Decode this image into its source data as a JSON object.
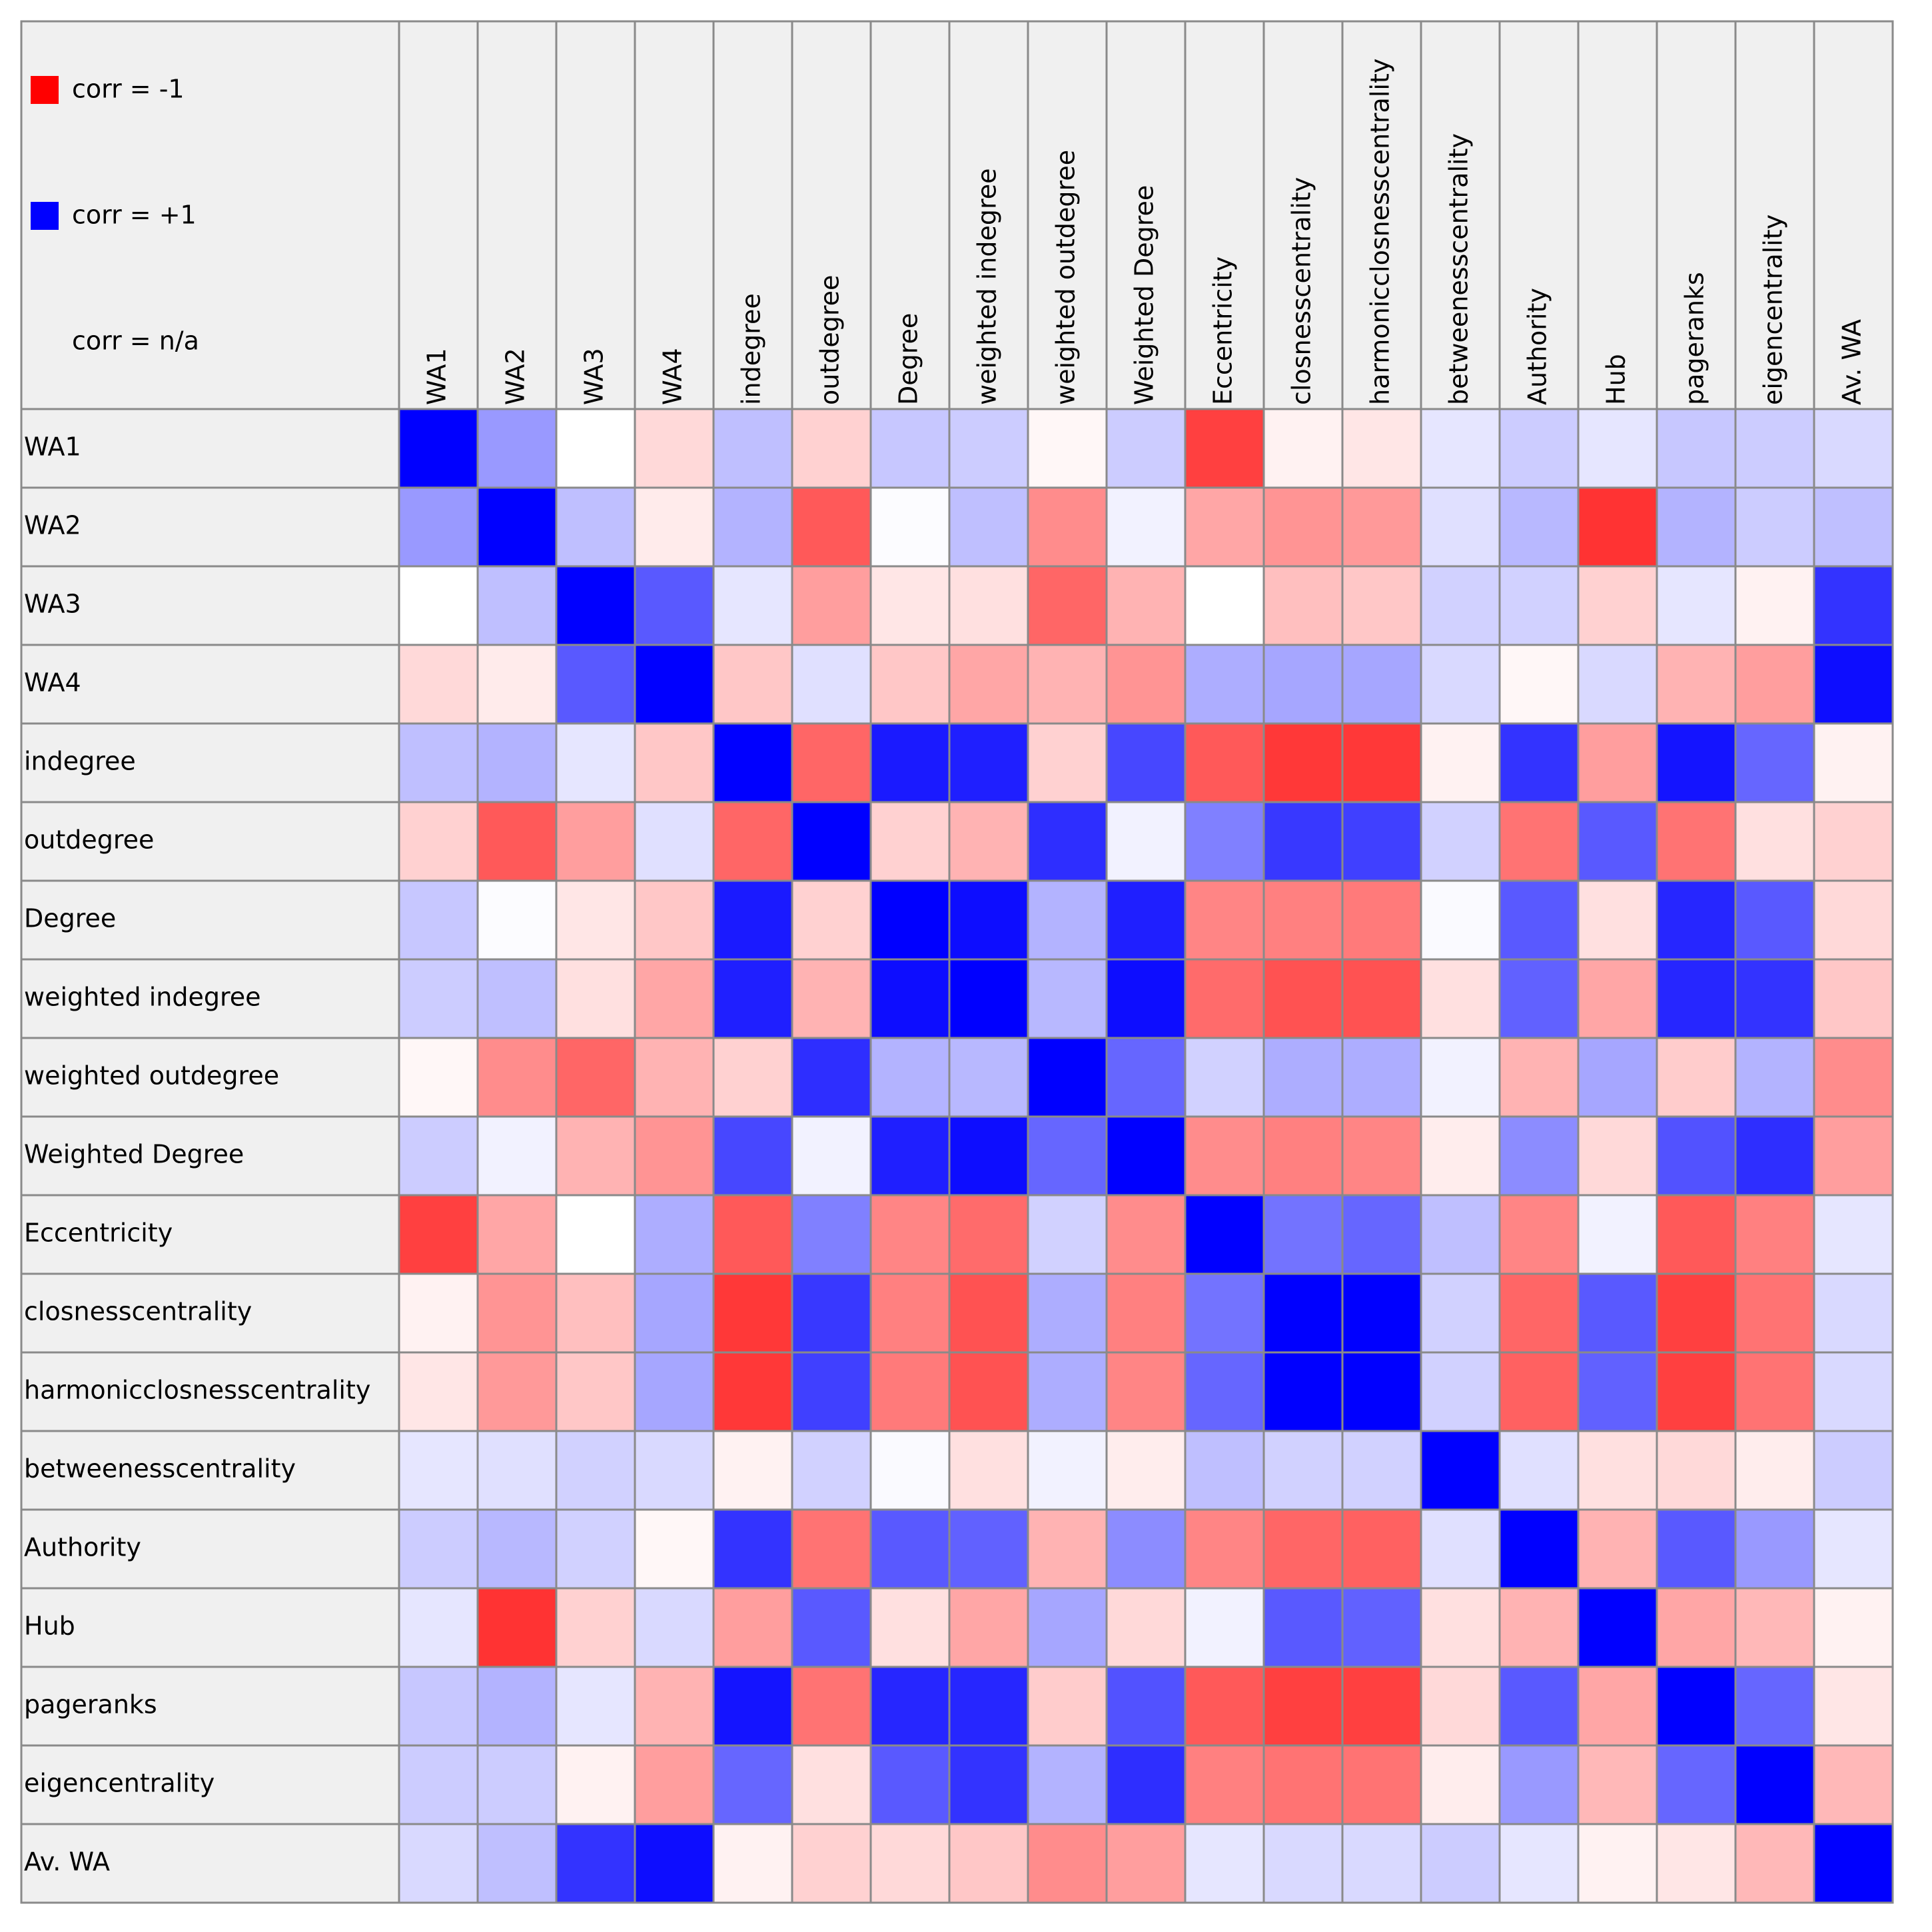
{
  "chart_data": {
    "type": "heatmap",
    "categories": [
      "WA1",
      "WA2",
      "WA3",
      "WA4",
      "indegree",
      "outdegree",
      "Degree",
      "weighted indegree",
      "weighted outdegree",
      "Weighted Degree",
      "Eccentricity",
      "closnesscentrality",
      "harmonicclosnesscentrality",
      "betweenesscentrality",
      "Authority",
      "Hub",
      "pageranks",
      "eigencentrality",
      "Av. WA"
    ],
    "values": [
      [
        1,
        0.4,
        0.0,
        -0.15,
        0.25,
        -0.18,
        0.22,
        0.2,
        -0.03,
        0.2,
        -0.75,
        -0.05,
        -0.1,
        0.1,
        0.2,
        0.1,
        0.22,
        0.2,
        0.15
      ],
      [
        0.4,
        1,
        0.25,
        -0.08,
        0.3,
        -0.65,
        0.01,
        0.25,
        -0.45,
        0.05,
        -0.35,
        -0.42,
        -0.4,
        0.12,
        0.28,
        -0.8,
        0.3,
        0.2,
        0.25
      ],
      [
        0.0,
        0.25,
        1,
        0.65,
        0.1,
        -0.38,
        -0.1,
        -0.12,
        -0.6,
        -0.3,
        0.0,
        -0.25,
        -0.22,
        0.18,
        0.18,
        -0.18,
        0.1,
        -0.05,
        0.8
      ],
      [
        -0.15,
        -0.08,
        0.65,
        1,
        -0.22,
        0.12,
        -0.22,
        -0.35,
        -0.3,
        -0.42,
        0.32,
        0.35,
        0.35,
        0.15,
        -0.03,
        0.15,
        -0.3,
        -0.38,
        0.95
      ],
      [
        0.25,
        0.3,
        0.1,
        -0.22,
        1,
        -0.6,
        0.9,
        0.88,
        -0.18,
        0.72,
        -0.65,
        -0.78,
        -0.78,
        -0.05,
        0.8,
        -0.38,
        0.92,
        0.6,
        -0.05
      ],
      [
        -0.18,
        -0.65,
        -0.38,
        0.12,
        -0.6,
        1,
        -0.18,
        -0.3,
        0.82,
        0.05,
        0.5,
        0.78,
        0.75,
        0.18,
        -0.55,
        0.65,
        -0.55,
        -0.12,
        -0.18
      ],
      [
        0.22,
        0.01,
        -0.1,
        -0.22,
        0.9,
        -0.18,
        1,
        0.95,
        0.3,
        0.88,
        -0.48,
        -0.5,
        -0.52,
        0.02,
        0.65,
        -0.12,
        0.85,
        0.65,
        -0.15
      ],
      [
        0.2,
        0.25,
        -0.12,
        -0.35,
        0.88,
        -0.3,
        0.95,
        1,
        0.28,
        0.95,
        -0.58,
        -0.68,
        -0.68,
        -0.12,
        0.62,
        -0.35,
        0.85,
        0.8,
        -0.22
      ],
      [
        -0.03,
        -0.45,
        -0.6,
        -0.3,
        -0.18,
        0.82,
        0.3,
        0.28,
        1,
        0.6,
        0.18,
        0.32,
        0.32,
        0.05,
        -0.3,
        0.35,
        -0.2,
        0.3,
        -0.45
      ],
      [
        0.2,
        0.05,
        -0.3,
        -0.42,
        0.72,
        0.05,
        0.88,
        0.95,
        0.6,
        1,
        -0.45,
        -0.5,
        -0.48,
        -0.07,
        0.45,
        -0.15,
        0.68,
        0.82,
        -0.38
      ],
      [
        -0.75,
        -0.35,
        0.0,
        0.32,
        -0.65,
        0.5,
        -0.48,
        -0.58,
        0.18,
        -0.45,
        1,
        0.55,
        0.6,
        0.25,
        -0.48,
        0.05,
        -0.65,
        -0.5,
        0.1
      ],
      [
        -0.05,
        -0.42,
        -0.25,
        0.35,
        -0.78,
        0.78,
        -0.5,
        -0.68,
        0.32,
        -0.5,
        0.55,
        1,
        1,
        0.18,
        -0.6,
        0.65,
        -0.75,
        -0.55,
        0.15
      ],
      [
        -0.1,
        -0.4,
        -0.22,
        0.35,
        -0.78,
        0.75,
        -0.52,
        -0.68,
        0.32,
        -0.48,
        0.6,
        1,
        1,
        0.18,
        -0.62,
        0.62,
        -0.75,
        -0.55,
        0.15
      ],
      [
        0.1,
        0.12,
        0.18,
        0.15,
        -0.05,
        0.18,
        0.02,
        -0.12,
        0.05,
        -0.07,
        0.25,
        0.18,
        0.18,
        1,
        0.12,
        -0.12,
        -0.15,
        -0.07,
        0.2
      ],
      [
        0.2,
        0.28,
        0.18,
        -0.03,
        0.8,
        -0.55,
        0.65,
        0.62,
        -0.3,
        0.45,
        -0.48,
        -0.6,
        -0.62,
        0.12,
        1,
        -0.3,
        0.65,
        0.4,
        0.1
      ],
      [
        0.1,
        -0.8,
        -0.18,
        0.15,
        -0.38,
        0.65,
        -0.12,
        -0.35,
        0.35,
        -0.15,
        0.05,
        0.65,
        0.62,
        -0.12,
        -0.3,
        1,
        -0.35,
        -0.28,
        -0.05
      ],
      [
        0.22,
        0.3,
        0.1,
        -0.3,
        0.92,
        -0.55,
        0.85,
        0.85,
        -0.2,
        0.68,
        -0.65,
        -0.75,
        -0.75,
        -0.15,
        0.65,
        -0.35,
        1,
        0.6,
        -0.1
      ],
      [
        0.2,
        0.2,
        -0.05,
        -0.38,
        0.6,
        -0.12,
        0.65,
        0.8,
        0.3,
        0.82,
        -0.5,
        -0.55,
        -0.55,
        -0.07,
        0.4,
        -0.28,
        0.6,
        1,
        -0.28
      ],
      [
        0.15,
        0.25,
        0.8,
        0.95,
        -0.05,
        -0.18,
        -0.15,
        -0.22,
        -0.45,
        -0.38,
        0.1,
        0.15,
        0.15,
        0.2,
        0.1,
        -0.05,
        -0.1,
        -0.28,
        1
      ]
    ],
    "colorscale": {
      "min": -1,
      "max": 1,
      "min_color": "#ff0000",
      "mid_color": "#ffffff",
      "max_color": "#0000ff"
    },
    "legend": [
      {
        "label": "corr = -1",
        "color": "#ff0000"
      },
      {
        "label": "corr = +1",
        "color": "#0000ff"
      },
      {
        "label": "corr = n/a"
      }
    ]
  }
}
